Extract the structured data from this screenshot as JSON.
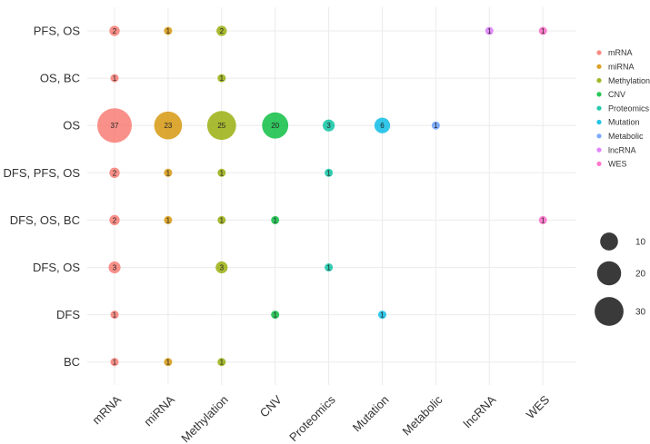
{
  "chart_data": {
    "type": "bubble",
    "title": "",
    "xlabel": "",
    "ylabel": "",
    "categories_x": [
      "mRNA",
      "miRNA",
      "Methylation",
      "CNV",
      "Proteomics",
      "Mutation",
      "Metabolic",
      "lncRNA",
      "WES"
    ],
    "categories_y": [
      "PFS, OS",
      "OS, BC",
      "OS",
      "DFS, PFS, OS",
      "DFS, OS, BC",
      "DFS, OS",
      "DFS",
      "BC"
    ],
    "colors": {
      "mRNA": "#F8766D",
      "miRNA": "#D39200",
      "Methylation": "#93AA00",
      "CNV": "#00BA38",
      "Proteomics": "#00C19F",
      "Mutation": "#00B9E3",
      "Metabolic": "#619CFF",
      "lncRNA": "#DB72FB",
      "WES": "#FF61C3"
    },
    "points": [
      {
        "x": "mRNA",
        "y": "PFS, OS",
        "value": 2
      },
      {
        "x": "miRNA",
        "y": "PFS, OS",
        "value": 1
      },
      {
        "x": "Methylation",
        "y": "PFS, OS",
        "value": 2
      },
      {
        "x": "lncRNA",
        "y": "PFS, OS",
        "value": 1
      },
      {
        "x": "WES",
        "y": "PFS, OS",
        "value": 1
      },
      {
        "x": "mRNA",
        "y": "OS, BC",
        "value": 1
      },
      {
        "x": "Methylation",
        "y": "OS, BC",
        "value": 1
      },
      {
        "x": "mRNA",
        "y": "OS",
        "value": 37
      },
      {
        "x": "miRNA",
        "y": "OS",
        "value": 23
      },
      {
        "x": "Methylation",
        "y": "OS",
        "value": 25
      },
      {
        "x": "CNV",
        "y": "OS",
        "value": 20
      },
      {
        "x": "Proteomics",
        "y": "OS",
        "value": 3
      },
      {
        "x": "Mutation",
        "y": "OS",
        "value": 6
      },
      {
        "x": "Metabolic",
        "y": "OS",
        "value": 1
      },
      {
        "x": "mRNA",
        "y": "DFS, PFS, OS",
        "value": 2
      },
      {
        "x": "miRNA",
        "y": "DFS, PFS, OS",
        "value": 1
      },
      {
        "x": "Methylation",
        "y": "DFS, PFS, OS",
        "value": 1
      },
      {
        "x": "Proteomics",
        "y": "DFS, PFS, OS",
        "value": 1
      },
      {
        "x": "mRNA",
        "y": "DFS, OS, BC",
        "value": 2
      },
      {
        "x": "miRNA",
        "y": "DFS, OS, BC",
        "value": 1
      },
      {
        "x": "Methylation",
        "y": "DFS, OS, BC",
        "value": 1
      },
      {
        "x": "CNV",
        "y": "DFS, OS, BC",
        "value": 1
      },
      {
        "x": "WES",
        "y": "DFS, OS, BC",
        "value": 1
      },
      {
        "x": "mRNA",
        "y": "DFS, OS",
        "value": 3
      },
      {
        "x": "Methylation",
        "y": "DFS, OS",
        "value": 3
      },
      {
        "x": "Proteomics",
        "y": "DFS, OS",
        "value": 1
      },
      {
        "x": "mRNA",
        "y": "DFS",
        "value": 1
      },
      {
        "x": "CNV",
        "y": "DFS",
        "value": 1
      },
      {
        "x": "Mutation",
        "y": "DFS",
        "value": 1
      },
      {
        "x": "mRNA",
        "y": "BC",
        "value": 1
      },
      {
        "x": "miRNA",
        "y": "BC",
        "value": 1
      },
      {
        "x": "Methylation",
        "y": "BC",
        "value": 1
      }
    ],
    "legend": {
      "color_entries": [
        "mRNA",
        "miRNA",
        "Methylation",
        "CNV",
        "Proteomics",
        "Mutation",
        "Metabolic",
        "lncRNA",
        "WES"
      ],
      "size_entries": [
        10,
        20,
        30
      ],
      "size_color": "#3a3a3a",
      "placement": "right"
    },
    "size_range": [
      1,
      37
    ],
    "grid": true
  }
}
